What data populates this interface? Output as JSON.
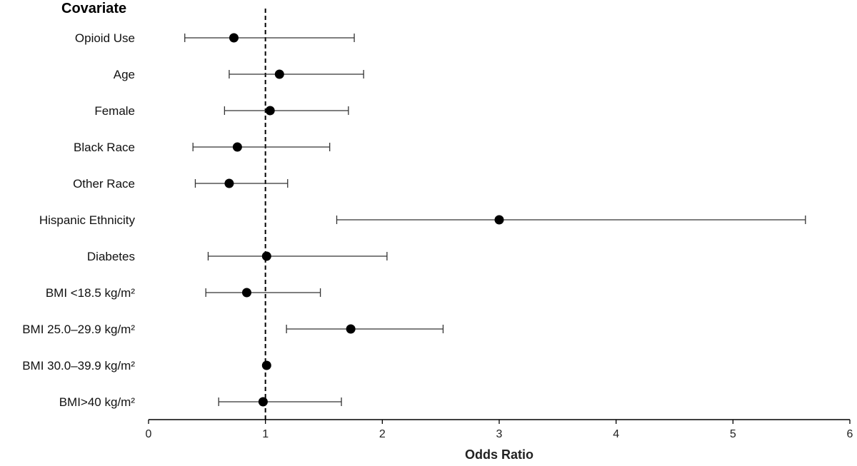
{
  "chart_data": {
    "type": "scatter",
    "subtype": "forest-plot",
    "header": "Covariate",
    "xlabel": "Odds Ratio",
    "xlim": [
      0,
      6
    ],
    "xticks": [
      0,
      1,
      2,
      3,
      4,
      5,
      6
    ],
    "reference_line": 1,
    "rows": [
      {
        "label": "Opioid Use",
        "or": 0.73,
        "lo": 0.31,
        "hi": 1.76
      },
      {
        "label": "Age",
        "or": 1.12,
        "lo": 0.69,
        "hi": 1.84
      },
      {
        "label": "Female",
        "or": 1.04,
        "lo": 0.65,
        "hi": 1.71
      },
      {
        "label": "Black Race",
        "or": 0.76,
        "lo": 0.38,
        "hi": 1.55
      },
      {
        "label": "Other Race",
        "or": 0.69,
        "lo": 0.4,
        "hi": 1.19
      },
      {
        "label": "Hispanic Ethnicity",
        "or": 3.0,
        "lo": 1.61,
        "hi": 5.62
      },
      {
        "label": "Diabetes",
        "or": 1.01,
        "lo": 0.51,
        "hi": 2.04
      },
      {
        "label": "BMI <18.5 kg/m²",
        "or": 0.84,
        "lo": 0.49,
        "hi": 1.47
      },
      {
        "label": "BMI 25.0–29.9 kg/m²",
        "or": 1.73,
        "lo": 1.18,
        "hi": 2.52
      },
      {
        "label": "BMI 30.0–39.9 kg/m²",
        "or": 1.01,
        "lo": 1.01,
        "hi": 1.01
      },
      {
        "label": "BMI>40 kg/m²",
        "or": 0.98,
        "lo": 0.6,
        "hi": 1.65
      }
    ]
  }
}
